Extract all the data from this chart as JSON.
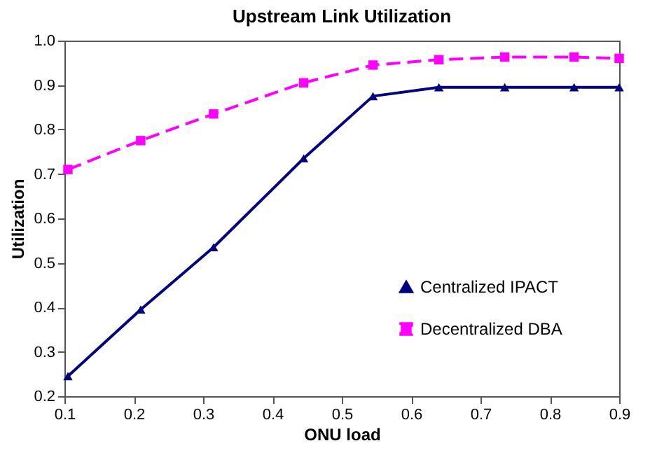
{
  "chart_data": {
    "type": "line",
    "title": "Upstream Link Utilization",
    "xlabel": "ONU load",
    "ylabel": "Utilization",
    "x": [
      0.105,
      0.21,
      0.315,
      0.445,
      0.545,
      0.64,
      0.735,
      0.835,
      0.9
    ],
    "series": [
      {
        "name": "Centralized IPACT",
        "color": "#000080",
        "marker": "triangle",
        "line_style": "solid",
        "values": [
          0.245,
          0.395,
          0.535,
          0.735,
          0.875,
          0.895,
          0.895,
          0.895,
          0.895
        ]
      },
      {
        "name": "Decentralized DBA",
        "color": "#ff00ff",
        "marker": "square",
        "line_style": "dashed",
        "values": [
          0.71,
          0.775,
          0.835,
          0.905,
          0.945,
          0.957,
          0.963,
          0.963,
          0.96
        ]
      }
    ],
    "xlim": [
      0.1,
      0.9
    ],
    "xticks": [
      0.1,
      0.2,
      0.3,
      0.4,
      0.5,
      0.6,
      0.7,
      0.8,
      0.9
    ],
    "ylim": [
      0.2,
      1.0
    ],
    "yticks": [
      0.2,
      0.3,
      0.4,
      0.5,
      0.6,
      0.7,
      0.8,
      0.9,
      {
        "value": 1.0,
        "label": "1.0"
      }
    ],
    "grid": false,
    "legend": "bottom right"
  }
}
